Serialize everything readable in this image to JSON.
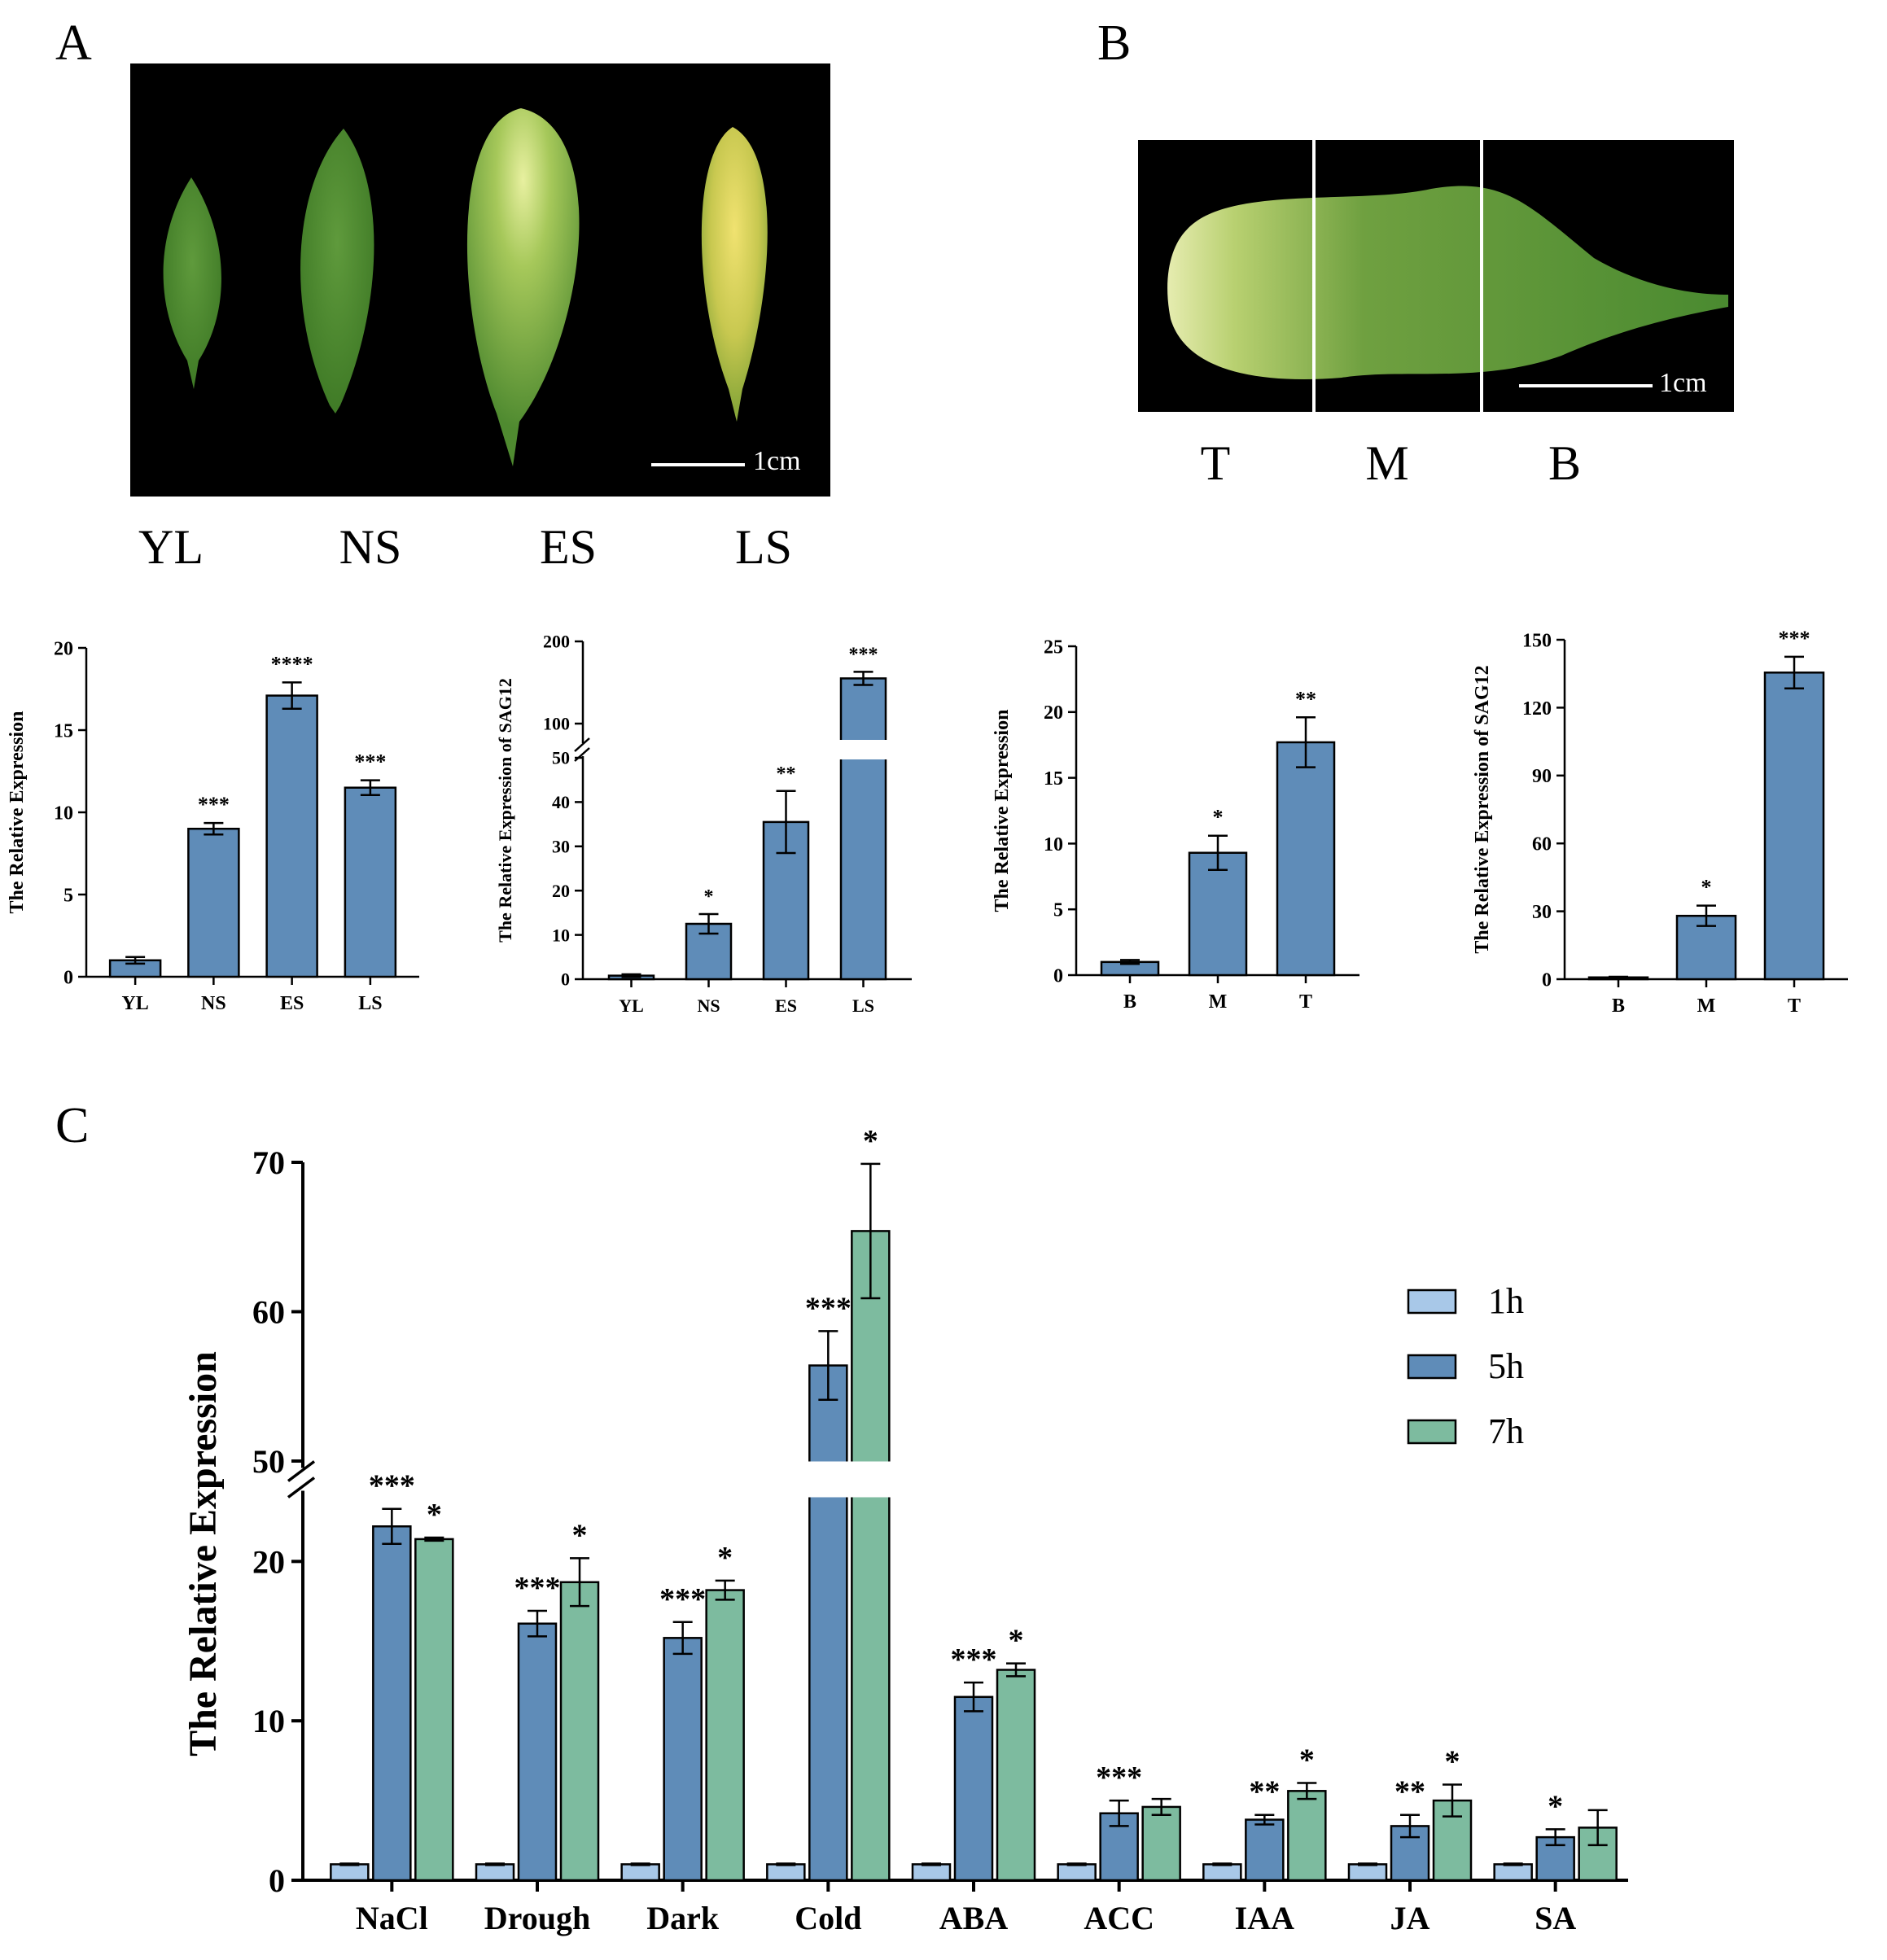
{
  "panels": {
    "a": "A",
    "b": "B",
    "c": "C"
  },
  "photo_a": {
    "scale_label": "1cm",
    "captions": [
      "YL",
      "NS",
      "ES",
      "LS"
    ]
  },
  "photo_b": {
    "scale_label": "1cm",
    "captions": [
      "T",
      "M",
      "B"
    ]
  },
  "colors": {
    "bar_blue": "#5f8cb8",
    "bar_light": "#a8c8e8",
    "bar_green": "#7dbb9f"
  },
  "chart_data": [
    {
      "id": "a1",
      "type": "bar",
      "ylabel": "The Relative Expression",
      "categories": [
        "YL",
        "NS",
        "ES",
        "LS"
      ],
      "values": [
        1.0,
        9.0,
        17.1,
        11.5
      ],
      "errors": [
        0.2,
        0.35,
        0.8,
        0.45
      ],
      "sig": [
        "",
        "***",
        "****",
        "***"
      ],
      "ylim": [
        0,
        20
      ],
      "yticks": [
        "0",
        "5",
        "10",
        "15",
        "20"
      ]
    },
    {
      "id": "a2",
      "type": "bar",
      "ylabel": "The Relative Expression of SAG12",
      "categories": [
        "YL",
        "NS",
        "ES",
        "LS"
      ],
      "values": [
        0.8,
        12.5,
        35.5,
        155
      ],
      "errors": [
        0.3,
        2.2,
        7.0,
        8.0
      ],
      "sig": [
        "",
        "*",
        "**",
        "***"
      ],
      "axis_break": [
        50,
        90
      ],
      "ylim": [
        0,
        200
      ],
      "yticks": [
        "0",
        "10",
        "20",
        "30",
        "40",
        "50",
        "100",
        "200"
      ]
    },
    {
      "id": "b1",
      "type": "bar",
      "ylabel": "The Relative Expression",
      "categories": [
        "B",
        "M",
        "T"
      ],
      "values": [
        1.0,
        9.3,
        17.7
      ],
      "errors": [
        0.15,
        1.3,
        1.9
      ],
      "sig": [
        "",
        "*",
        "**"
      ],
      "ylim": [
        0,
        25
      ],
      "yticks": [
        "0",
        "5",
        "10",
        "15",
        "20",
        "25"
      ]
    },
    {
      "id": "b2",
      "type": "bar",
      "ylabel": "The Relative Expression of SAG12",
      "categories": [
        "B",
        "M",
        "T"
      ],
      "values": [
        0.8,
        28,
        135.5
      ],
      "errors": [
        0.3,
        4.5,
        7.0
      ],
      "sig": [
        "",
        "*",
        "***"
      ],
      "ylim": [
        0,
        150
      ],
      "yticks": [
        "0",
        "30",
        "60",
        "90",
        "120",
        "150"
      ]
    },
    {
      "id": "c",
      "type": "bar",
      "ylabel": "The Relative Expression",
      "categories": [
        "NaCl",
        "Drough",
        "Dark",
        "Cold",
        "ABA",
        "ACC",
        "IAA",
        "JA",
        "SA"
      ],
      "series": [
        {
          "name": "1h",
          "values": [
            1,
            1,
            1,
            1,
            1,
            1,
            1,
            1,
            1
          ],
          "errors": [
            0.05,
            0.05,
            0.05,
            0.05,
            0.05,
            0.05,
            0.05,
            0.05,
            0.05
          ],
          "sig": [
            "",
            "",
            "",
            "",
            "",
            "",
            "",
            "",
            ""
          ]
        },
        {
          "name": "5h",
          "values": [
            22.2,
            16.1,
            15.2,
            56.4,
            11.5,
            4.2,
            3.8,
            3.4,
            2.7
          ],
          "errors": [
            1.1,
            0.8,
            1.0,
            2.3,
            0.9,
            0.8,
            0.3,
            0.7,
            0.5
          ],
          "sig": [
            "***",
            "***",
            "***",
            "***",
            "***",
            "***",
            "**",
            "**",
            "*"
          ]
        },
        {
          "name": "7h",
          "values": [
            21.4,
            18.7,
            18.2,
            65.4,
            13.2,
            4.6,
            5.6,
            5.0,
            3.3
          ],
          "errors": [
            0.1,
            1.5,
            0.6,
            4.5,
            0.4,
            0.5,
            0.5,
            1.0,
            1.1
          ],
          "sig": [
            "*",
            "*",
            "*",
            "*",
            "*",
            "",
            "*",
            "*",
            ""
          ]
        }
      ],
      "axis_break": [
        24,
        50
      ],
      "ylim": [
        0,
        70
      ],
      "yticks": [
        "0",
        "10",
        "20",
        "50",
        "60",
        "70"
      ],
      "legend_position": "top-right"
    }
  ]
}
